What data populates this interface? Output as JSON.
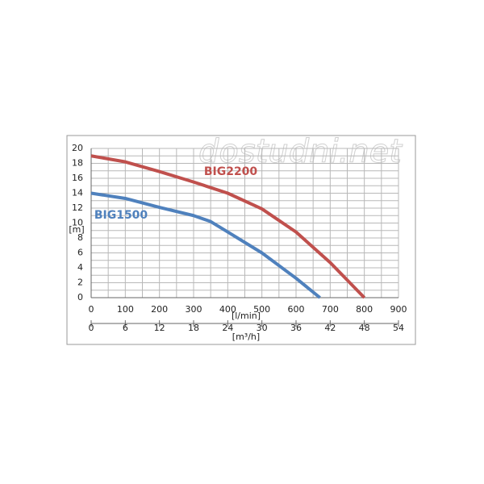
{
  "chart_data": {
    "type": "line",
    "watermark": "dostudni.net",
    "y_label": "[m]",
    "x_label": "[l/min]",
    "x2_label": "[m³/h]",
    "xlim": [
      0,
      900
    ],
    "xticks": [
      0,
      100,
      200,
      300,
      400,
      500,
      600,
      700,
      800,
      900
    ],
    "x2lim": [
      0,
      54
    ],
    "x2ticks": [
      0,
      6,
      12,
      18,
      24,
      30,
      36,
      42,
      48,
      54
    ],
    "ylim": [
      0,
      20
    ],
    "yticks": [
      0,
      2,
      4,
      6,
      8,
      10,
      12,
      14,
      16,
      18,
      20
    ],
    "grid": true,
    "series": [
      {
        "name": "BIG2200",
        "color": "#c0504d",
        "x": [
          0,
          100,
          200,
          300,
          400,
          500,
          600,
          700,
          800
        ],
        "values": [
          19,
          18.2,
          16.9,
          15.5,
          14,
          11.9,
          8.8,
          4.7,
          0
        ]
      },
      {
        "name": "BIG1500",
        "color": "#4f81bd",
        "x": [
          0,
          100,
          200,
          300,
          350,
          400,
          500,
          600,
          670
        ],
        "values": [
          14,
          13.3,
          12.1,
          11,
          10.2,
          8.8,
          6,
          2.6,
          0
        ]
      }
    ]
  }
}
